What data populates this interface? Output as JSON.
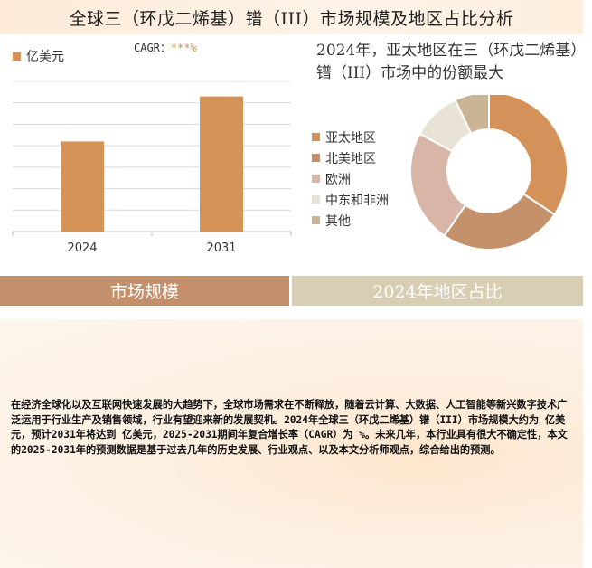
{
  "title": "全球三（环戊二烯基）镨（III）市场规模及地区占比分析",
  "left_chart": {
    "legend_label": "亿美元",
    "cagr_label": "CAGR：",
    "cagr_value": "***%"
  },
  "right_chart": {
    "headline": "2024年，亚太地区在三（环戊二烯基）镨（III）市场中的份额最大"
  },
  "section_labels": {
    "left": "市场规模",
    "right": "2024年地区占比"
  },
  "body_text": "在经济全球化以及互联网快速发展的大趋势下，全球市场需求在不断释放，随着云计算、大数据、人工智能等新兴数字技术广泛运用于行业生产及销售领域，行业有望迎来新的发展契机。2024年全球三（环戊二烯基）镨（III）市场规模大约为 亿美元，预计2031年将达到 亿美元，2025-2031期间年复合增长率（CAGR）为 %。未来几年，本行业具有很大不确定性，本文的2025-2031年的预测数据是基于过去几年的历史发展、行业观点、以及本文分析师观点，综合给出的预测。",
  "chart_data": [
    {
      "type": "bar",
      "categories": [
        "2024",
        "2031"
      ],
      "values": [
        42,
        63
      ],
      "ylim": [
        0,
        70
      ],
      "legend": "亿美元",
      "grid": true,
      "bar_color": "#d49256"
    },
    {
      "type": "pie",
      "donut": true,
      "labels": [
        "亚太地区",
        "北美地区",
        "欧洲",
        "中东和非洲",
        "其他"
      ],
      "values": [
        34,
        25,
        23,
        10,
        7
      ],
      "colors": [
        "#d4915a",
        "#c4916a",
        "#d9b5a8",
        "#e9e3d6",
        "#c9b596"
      ]
    }
  ]
}
